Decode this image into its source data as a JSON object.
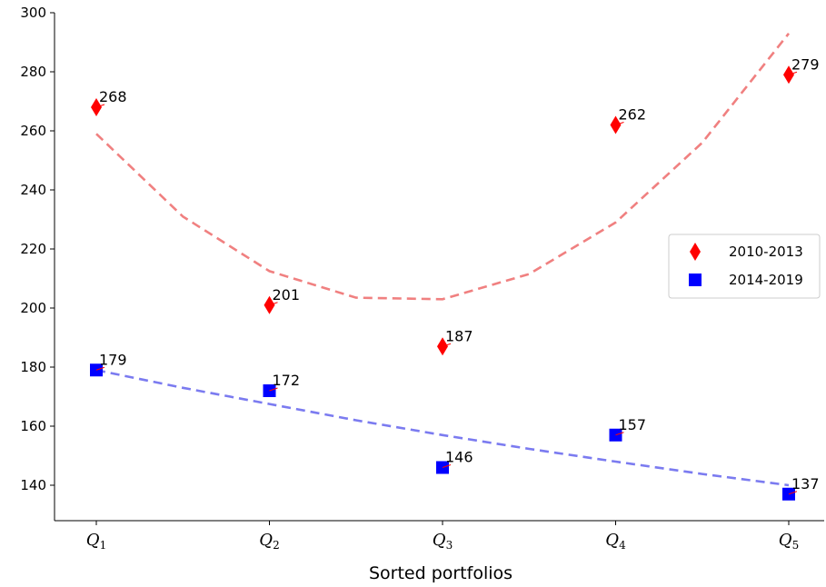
{
  "chart_data": {
    "type": "scatter",
    "categories": [
      "Q1",
      "Q2",
      "Q3",
      "Q4",
      "Q5"
    ],
    "category_labels": [
      {
        "base": "Q",
        "sub": "1"
      },
      {
        "base": "Q",
        "sub": "2"
      },
      {
        "base": "Q",
        "sub": "3"
      },
      {
        "base": "Q",
        "sub": "4"
      },
      {
        "base": "Q",
        "sub": "5"
      }
    ],
    "xlabel": "Sorted portfolios",
    "ylabel": "",
    "ylim": [
      128,
      300
    ],
    "yticks": [
      140,
      160,
      180,
      200,
      220,
      240,
      260,
      280,
      300
    ],
    "grid": false,
    "legend_position": "center-right",
    "series": [
      {
        "name": "2010-2013",
        "marker": "diamond",
        "color": "#ff0000",
        "values": [
          268,
          201,
          187,
          262,
          279
        ],
        "labels": [
          "268",
          "201",
          "187",
          "262",
          "279"
        ],
        "trend_color": "#f08080",
        "trend": [
          {
            "x": 0,
            "y": 259
          },
          {
            "x": 0.5,
            "y": 231
          },
          {
            "x": 1,
            "y": 212.5
          },
          {
            "x": 1.5,
            "y": 203.5
          },
          {
            "x": 2,
            "y": 203
          },
          {
            "x": 2.5,
            "y": 211.5
          },
          {
            "x": 3,
            "y": 229
          },
          {
            "x": 3.5,
            "y": 256
          },
          {
            "x": 4,
            "y": 293
          }
        ]
      },
      {
        "name": "2014-2019",
        "marker": "square",
        "color": "#0000ff",
        "values": [
          179,
          172,
          146,
          157,
          137
        ],
        "labels": [
          "179",
          "172",
          "146",
          "157",
          "137"
        ],
        "trend_color": "#7b7bf0",
        "trend": [
          {
            "x": 0,
            "y": 179
          },
          {
            "x": 0.5,
            "y": 173
          },
          {
            "x": 1,
            "y": 167.5
          },
          {
            "x": 1.5,
            "y": 162
          },
          {
            "x": 2,
            "y": 157
          },
          {
            "x": 2.5,
            "y": 152.3
          },
          {
            "x": 3,
            "y": 148
          },
          {
            "x": 3.5,
            "y": 143.8
          },
          {
            "x": 4,
            "y": 140
          }
        ]
      }
    ]
  }
}
